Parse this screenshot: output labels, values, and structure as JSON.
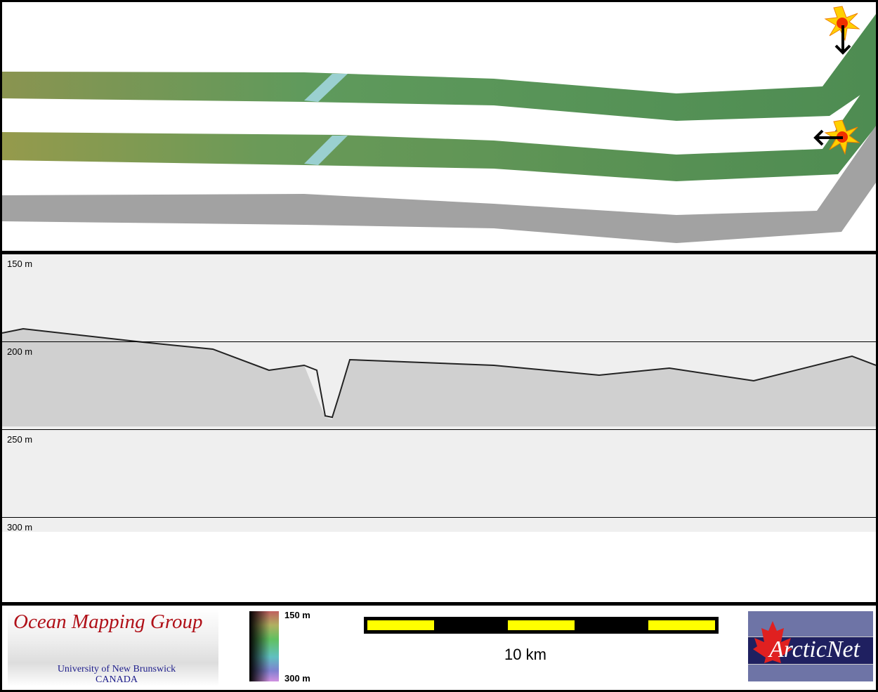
{
  "map": {
    "swaths": [
      "bathymetry-sun-north",
      "bathymetry-sun-east",
      "backscatter"
    ],
    "colors": {
      "swath_green": "#5c9a5a",
      "swath_olive": "#8a9450",
      "backscatter": "#9a9a9a"
    }
  },
  "profile": {
    "depth_labels": [
      "150 m",
      "200 m",
      "250 m",
      "300 m"
    ],
    "background": "#efefef"
  },
  "footer": {
    "omg_logo": {
      "title": "Ocean Mapping Group",
      "line1": "University of New Brunswick",
      "line2": "CANADA"
    },
    "colorbar": {
      "top_label": "150 m",
      "bottom_label": "300 m"
    },
    "scale": {
      "label": "10 km",
      "colors": [
        "#ffff00",
        "#000000"
      ]
    },
    "arcticnet_logo": {
      "text": "ArcticNet"
    }
  }
}
